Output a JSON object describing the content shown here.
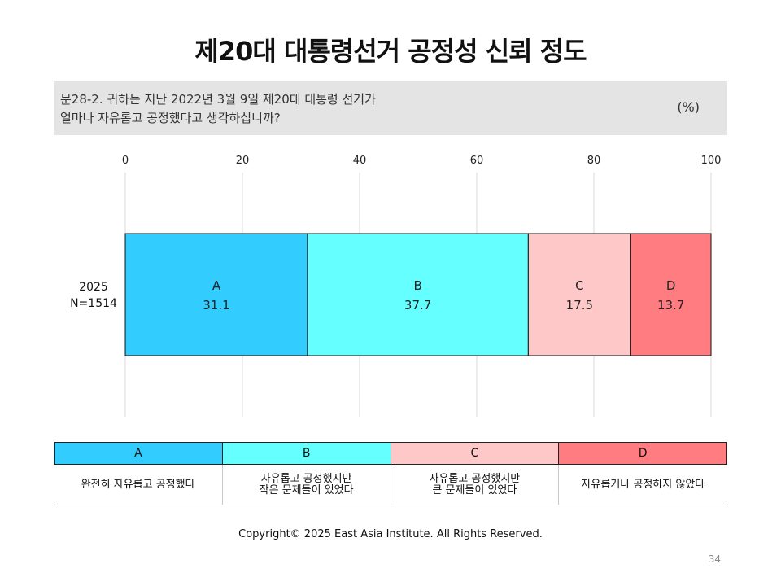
{
  "page": {
    "title": "제20대 대통령선거 공정성 신뢰 정도",
    "question_line1": "문28-2. 귀하는 지난 2022년 3월 9일 제20대 대통령 선거가",
    "question_line2": "얼마나 자유롭고 공정했다고 생각하십니까?",
    "unit": "(%)",
    "copyright": "Copyright© 2025 East Asia Institute. All Rights Reserved.",
    "page_number": "34"
  },
  "chart_data": {
    "type": "bar",
    "orientation": "horizontal",
    "stacked": true,
    "xlim": [
      0,
      100
    ],
    "x_ticks": [
      "0",
      "20",
      "40",
      "60",
      "80",
      "100"
    ],
    "grid": true,
    "categories": [
      "2025\nN=1514"
    ],
    "series": [
      {
        "name": "A",
        "values": [
          31.1
        ],
        "color": "#33ccff"
      },
      {
        "name": "B",
        "values": [
          37.7
        ],
        "color": "#66ffff"
      },
      {
        "name": "C",
        "values": [
          17.5
        ],
        "color": "#ffc8c8"
      },
      {
        "name": "D",
        "values": [
          13.7
        ],
        "color": "#ff7c80"
      }
    ]
  },
  "legend": {
    "headers": [
      {
        "label": "A",
        "color": "#33ccff"
      },
      {
        "label": "B",
        "color": "#66ffff"
      },
      {
        "label": "C",
        "color": "#ffc8c8"
      },
      {
        "label": "D",
        "color": "#ff7c80"
      }
    ],
    "descriptions": [
      "완전히 자유롭고 공정했다",
      "자유롭고 공정했지만\n작은 문제들이 있었다",
      "자유롭고 공정했지만\n큰 문제들이 있었다",
      "자유롭거나 공정하지 않았다"
    ]
  }
}
